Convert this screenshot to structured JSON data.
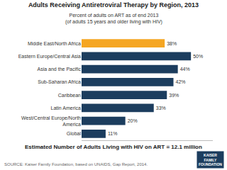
{
  "chart_data": {
    "type": "bar",
    "orientation": "horizontal",
    "title": "Adults Receiving Antiretroviral Therapy by Region, 2013",
    "subtitle": "Percent of adults on ART as of end 2013\n(of adults 15 years and older living with HIV)",
    "categories": [
      "Middle East/North Africa",
      "Eastern Europe/Central Asia",
      "Asia and the Pacific",
      "Sub-Saharan Africa",
      "Caribbean",
      "Latin America",
      "West/Central Europe/North\nAmerica",
      "Global"
    ],
    "values": [
      38,
      50,
      44,
      42,
      39,
      33,
      20,
      11
    ],
    "value_labels": [
      "38%",
      "50%",
      "44%",
      "42%",
      "39%",
      "33%",
      "20%",
      "11%"
    ],
    "data_labels": true,
    "colors": [
      "#f5a623",
      "#1c3d5e",
      "#1c3d5e",
      "#1c3d5e",
      "#1c3d5e",
      "#1c3d5e",
      "#1c3d5e",
      "#1c3d5e"
    ],
    "xlim": [
      0,
      60
    ],
    "xticks": [],
    "tick_labels": "y",
    "grid": false,
    "annotations": [
      "Estimated Number of Adults Living with HIV on ART = 12.1 million",
      "SOURCE: Kaiser Family Foundation, based on UNAIDS, Gap Report, 2014.",
      "KAISER",
      "FAMILY",
      "FOUNDATION"
    ]
  }
}
